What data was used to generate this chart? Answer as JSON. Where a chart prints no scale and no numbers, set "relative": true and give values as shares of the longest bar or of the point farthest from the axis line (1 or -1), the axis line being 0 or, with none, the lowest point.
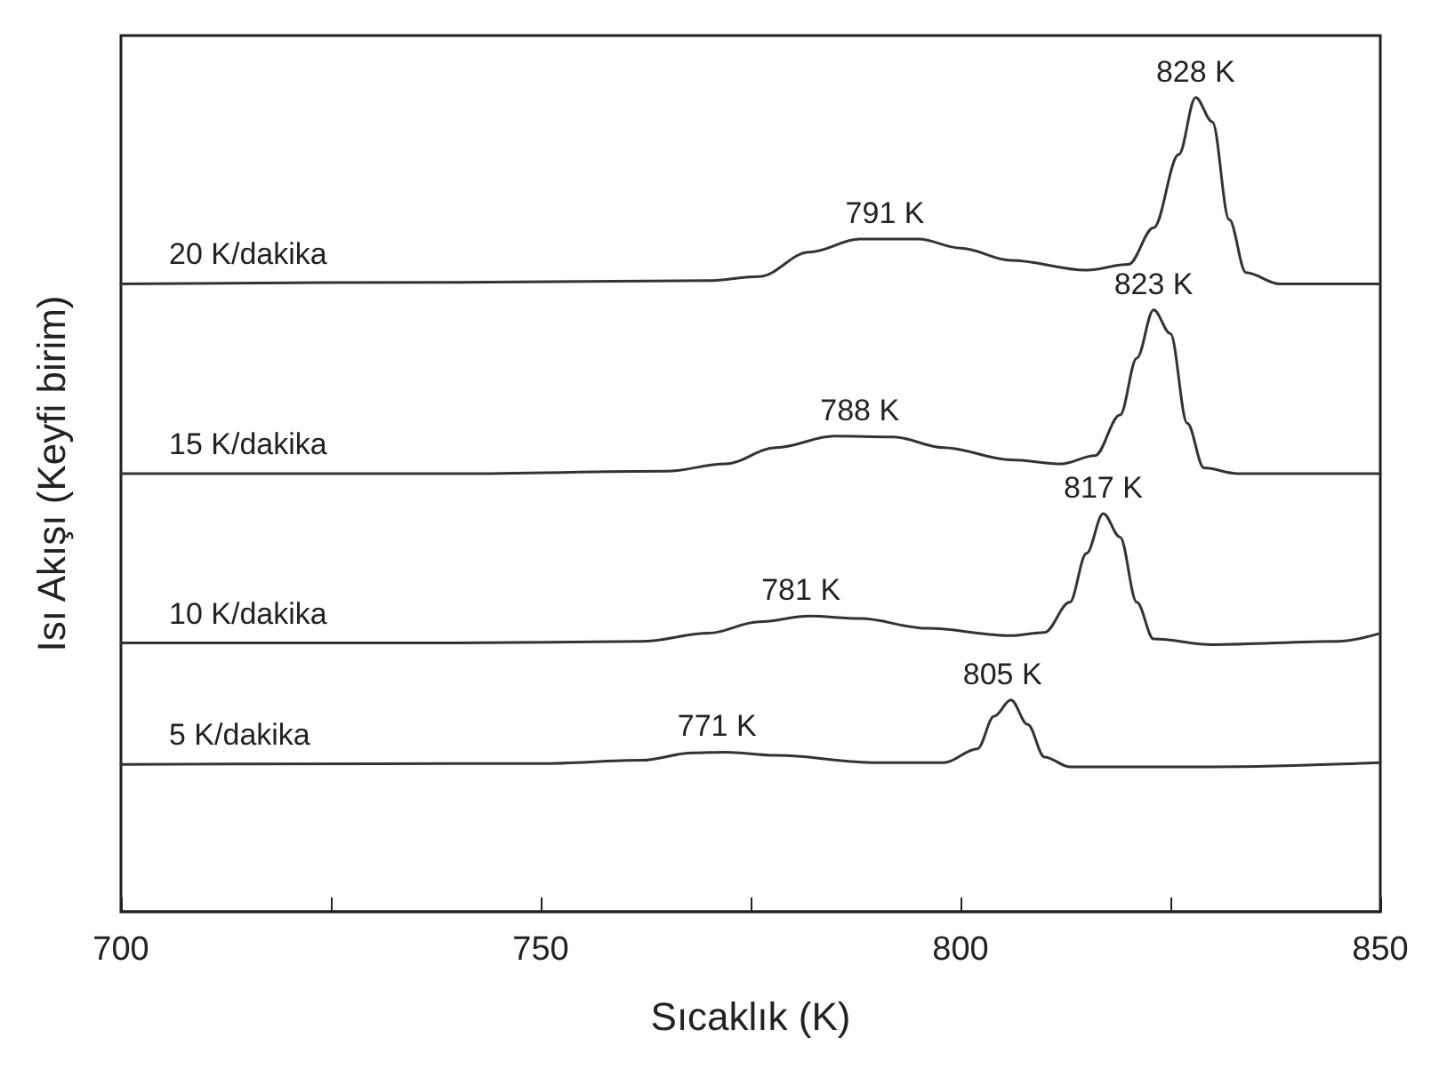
{
  "chart_data": {
    "type": "line",
    "relative": true,
    "xlabel": "Sıcaklık (K)",
    "ylabel": "Isı Akışı (Keyfi birim)",
    "xlim": [
      700,
      850
    ],
    "xticks": [
      700,
      {
        "value": 725,
        "label": null
      },
      750,
      {
        "value": 775,
        "label": null
      },
      800,
      {
        "value": 825,
        "label": null
      },
      850
    ],
    "grid": false,
    "legend": false,
    "marker": "none",
    "line_style": "solid",
    "series": [
      {
        "name": "20 K/dakika",
        "color": "#333333",
        "x": [
          700,
          740,
          770,
          776,
          782,
          788,
          795,
          800,
          806,
          815,
          820,
          823,
          826,
          828,
          830,
          832,
          834,
          838,
          850
        ],
        "values": [
          0.771,
          0.773,
          0.775,
          0.78,
          0.81,
          0.826,
          0.826,
          0.815,
          0.8,
          0.788,
          0.795,
          0.84,
          0.93,
          1.0,
          0.97,
          0.85,
          0.785,
          0.771,
          0.771
        ]
      },
      {
        "name": "15 K/dakika",
        "color": "#333333",
        "x": [
          700,
          740,
          765,
          772,
          778,
          785,
          792,
          798,
          806,
          812,
          816,
          819,
          821,
          823,
          825,
          827,
          829,
          833,
          850
        ],
        "values": [
          0.538,
          0.538,
          0.541,
          0.55,
          0.57,
          0.584,
          0.583,
          0.57,
          0.555,
          0.55,
          0.56,
          0.61,
          0.68,
          0.739,
          0.71,
          0.6,
          0.545,
          0.538,
          0.538
        ]
      },
      {
        "name": "10 K/dakika",
        "color": "#333333",
        "x": [
          700,
          740,
          762,
          770,
          776,
          782,
          788,
          796,
          806,
          810,
          813,
          815,
          817,
          819,
          821,
          823,
          830,
          845,
          850
        ],
        "values": [
          0.33,
          0.33,
          0.332,
          0.342,
          0.356,
          0.363,
          0.36,
          0.348,
          0.339,
          0.343,
          0.38,
          0.44,
          0.489,
          0.46,
          0.38,
          0.335,
          0.328,
          0.332,
          0.342
        ]
      },
      {
        "name": "5 K/dakika",
        "color": "#333333",
        "x": [
          700,
          750,
          762,
          768,
          772,
          778,
          790,
          798,
          802,
          804,
          806,
          808,
          810,
          813,
          830,
          850
        ],
        "values": [
          0.181,
          0.182,
          0.186,
          0.195,
          0.196,
          0.192,
          0.183,
          0.183,
          0.2,
          0.24,
          0.26,
          0.23,
          0.19,
          0.178,
          0.178,
          0.183
        ]
      }
    ],
    "annotations": [
      {
        "text": "828 K",
        "x": 828,
        "y": 1.0
      },
      {
        "text": "791 K",
        "x": 791,
        "y": 0.826
      },
      {
        "text": "823 K",
        "x": 823,
        "y": 0.739
      },
      {
        "text": "788 K",
        "x": 788,
        "y": 0.584
      },
      {
        "text": "817 K",
        "x": 817,
        "y": 0.489
      },
      {
        "text": "781 K",
        "x": 781,
        "y": 0.363
      },
      {
        "text": "805 K",
        "x": 805,
        "y": 0.26
      },
      {
        "text": "771 K",
        "x": 771,
        "y": 0.196
      }
    ]
  }
}
